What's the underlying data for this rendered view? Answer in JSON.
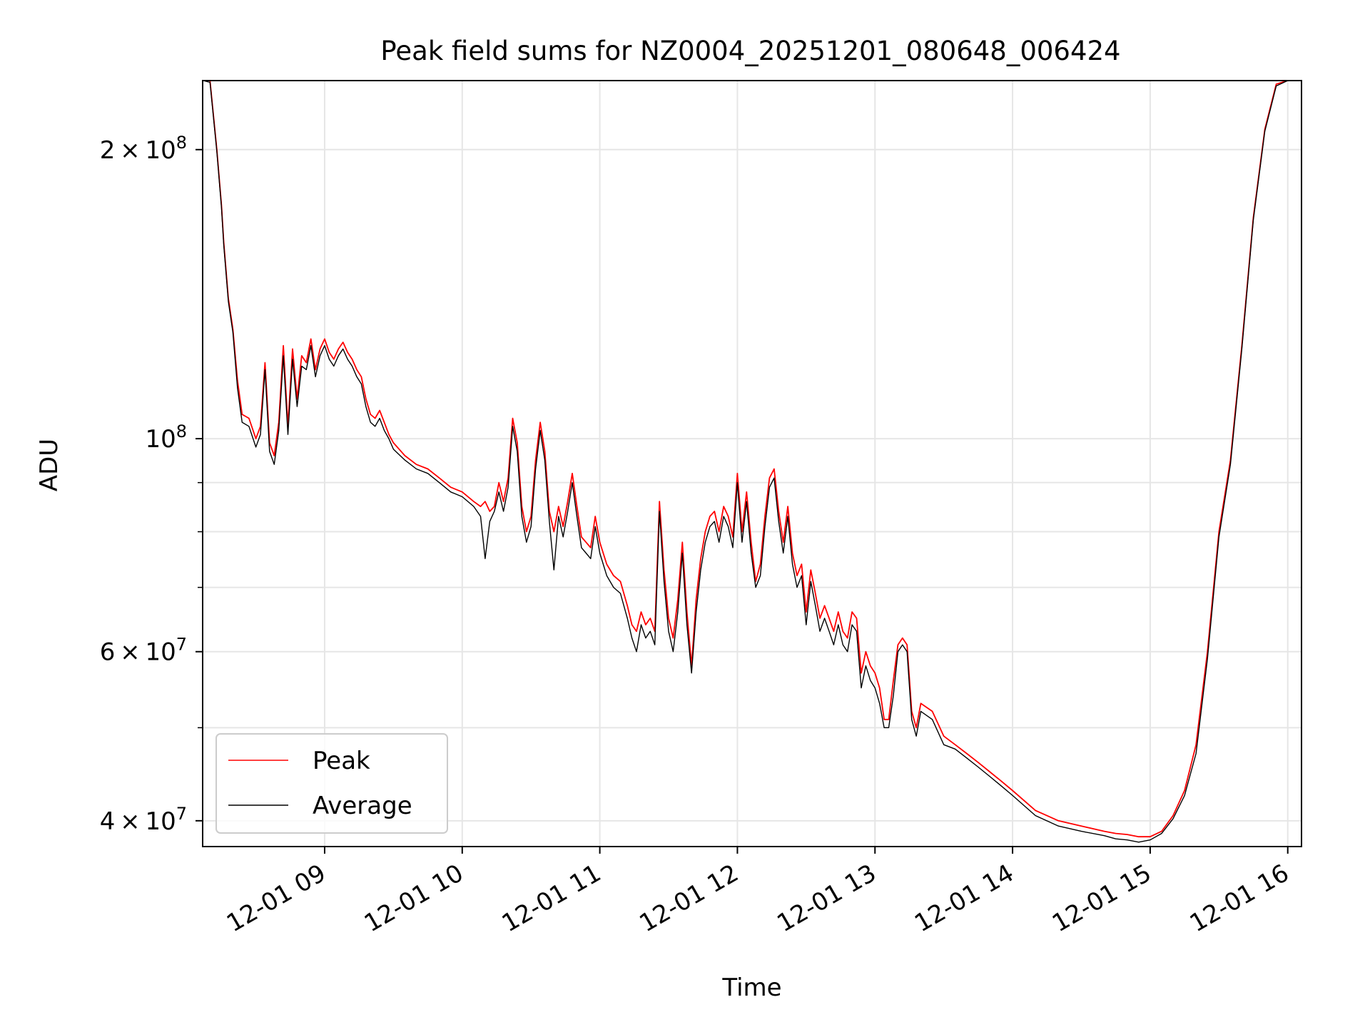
{
  "chart_data": {
    "type": "line",
    "title": "Peak field sums for NZ0004_20251201_080648_006424",
    "xlabel": "Time",
    "ylabel": "ADU",
    "x_unit": "time of day (2025-12-01)",
    "xlim": [
      "08:06:48",
      "16:06"
    ],
    "ylim": [
      37600000,
      236000000
    ],
    "yscale": "log",
    "grid": true,
    "legend_position": "lower-left",
    "x_ticks": [
      {
        "value": "09:00",
        "label": "12-01 09"
      },
      {
        "value": "10:00",
        "label": "12-01 10"
      },
      {
        "value": "11:00",
        "label": "12-01 11"
      },
      {
        "value": "12:00",
        "label": "12-01 12"
      },
      {
        "value": "13:00",
        "label": "12-01 13"
      },
      {
        "value": "14:00",
        "label": "12-01 14"
      },
      {
        "value": "15:00",
        "label": "12-01 15"
      },
      {
        "value": "16:00",
        "label": "12-01 16"
      }
    ],
    "y_ticks": [
      {
        "value": 200000000,
        "mantissa": "2",
        "exp": "8"
      },
      {
        "value": 100000000,
        "mantissa": "",
        "exp": "8"
      },
      {
        "value": 60000000,
        "mantissa": "6",
        "exp": "7"
      },
      {
        "value": 40000000,
        "mantissa": "4",
        "exp": "7"
      }
    ],
    "y_minor_gridlines": [
      50000000,
      70000000,
      80000000,
      90000000
    ],
    "series": [
      {
        "name": "Peak",
        "color": "#ff0000",
        "x": [
          "08:07",
          "08:10",
          "08:13",
          "08:15",
          "08:16",
          "08:18",
          "08:20",
          "08:22",
          "08:24",
          "08:27",
          "08:30",
          "08:32",
          "08:34",
          "08:36",
          "08:38",
          "08:40",
          "08:42",
          "08:44",
          "08:46",
          "08:48",
          "08:50",
          "08:52",
          "08:54",
          "08:56",
          "08:58",
          "09:00",
          "09:02",
          "09:04",
          "09:06",
          "09:08",
          "09:10",
          "09:12",
          "09:14",
          "09:16",
          "09:18",
          "09:20",
          "09:22",
          "09:24",
          "09:26",
          "09:28",
          "09:30",
          "09:35",
          "09:40",
          "09:45",
          "09:50",
          "09:55",
          "10:00",
          "10:05",
          "10:08",
          "10:10",
          "10:12",
          "10:14",
          "10:16",
          "10:18",
          "10:20",
          "10:22",
          "10:24",
          "10:26",
          "10:28",
          "10:30",
          "10:32",
          "10:34",
          "10:36",
          "10:38",
          "10:40",
          "10:42",
          "10:44",
          "10:46",
          "10:48",
          "10:50",
          "10:52",
          "10:54",
          "10:56",
          "10:58",
          "11:00",
          "11:03",
          "11:06",
          "11:09",
          "11:12",
          "11:14",
          "11:16",
          "11:18",
          "11:20",
          "11:22",
          "11:24",
          "11:26",
          "11:28",
          "11:30",
          "11:32",
          "11:34",
          "11:36",
          "11:38",
          "11:40",
          "11:42",
          "11:44",
          "11:46",
          "11:48",
          "11:50",
          "11:52",
          "11:54",
          "11:56",
          "11:58",
          "12:00",
          "12:02",
          "12:04",
          "12:06",
          "12:08",
          "12:10",
          "12:12",
          "12:14",
          "12:16",
          "12:18",
          "12:20",
          "12:22",
          "12:24",
          "12:26",
          "12:28",
          "12:30",
          "12:32",
          "12:34",
          "12:36",
          "12:38",
          "12:40",
          "12:42",
          "12:44",
          "12:46",
          "12:48",
          "12:50",
          "12:52",
          "12:54",
          "12:56",
          "12:58",
          "13:00",
          "13:02",
          "13:04",
          "13:06",
          "13:08",
          "13:10",
          "13:12",
          "13:14",
          "13:16",
          "13:18",
          "13:20",
          "13:25",
          "13:30",
          "13:35",
          "13:40",
          "13:45",
          "13:50",
          "13:55",
          "14:00",
          "14:10",
          "14:20",
          "14:30",
          "14:40",
          "14:45",
          "14:50",
          "14:55",
          "15:00",
          "15:05",
          "15:10",
          "15:15",
          "15:20",
          "15:25",
          "15:30",
          "15:35",
          "15:40",
          "15:45",
          "15:50",
          "15:55",
          "16:00",
          "16:06"
        ],
        "y": [
          236000000,
          236000000,
          200000000,
          175000000,
          160000000,
          140000000,
          130000000,
          115000000,
          106000000,
          105000000,
          100000000,
          103000000,
          120000000,
          99000000,
          96000000,
          104000000,
          125000000,
          103000000,
          124000000,
          110000000,
          122000000,
          120000000,
          127000000,
          118000000,
          124000000,
          127000000,
          123000000,
          121000000,
          124000000,
          126000000,
          123000000,
          121000000,
          118000000,
          116000000,
          110000000,
          106000000,
          105000000,
          107000000,
          104000000,
          101000000,
          99000000,
          96000000,
          94000000,
          93000000,
          91000000,
          89000000,
          88000000,
          86000000,
          85000000,
          86000000,
          84000000,
          85000000,
          90000000,
          86000000,
          91000000,
          105000000,
          99000000,
          85000000,
          80000000,
          83000000,
          95000000,
          104000000,
          97000000,
          84000000,
          80000000,
          85000000,
          81000000,
          86000000,
          92000000,
          85000000,
          79000000,
          78000000,
          77000000,
          83000000,
          78000000,
          74000000,
          72000000,
          71000000,
          67000000,
          64000000,
          63000000,
          66000000,
          64000000,
          65000000,
          63000000,
          86000000,
          73000000,
          65000000,
          62000000,
          68000000,
          78000000,
          66000000,
          58000000,
          68000000,
          75000000,
          80000000,
          83000000,
          84000000,
          80000000,
          85000000,
          83000000,
          79000000,
          92000000,
          80000000,
          88000000,
          78000000,
          71000000,
          74000000,
          83000000,
          91000000,
          93000000,
          84000000,
          78000000,
          85000000,
          76000000,
          72000000,
          74000000,
          66000000,
          73000000,
          69000000,
          65000000,
          67000000,
          65000000,
          63000000,
          66000000,
          63000000,
          62000000,
          66000000,
          65000000,
          57000000,
          60000000,
          58000000,
          57000000,
          55000000,
          51000000,
          51000000,
          56000000,
          61000000,
          62000000,
          61000000,
          52000000,
          50000000,
          53000000,
          52000000,
          49000000,
          48000000,
          47000000,
          46000000,
          45000000,
          44000000,
          43000000,
          41000000,
          40000000,
          39500000,
          39000000,
          38800000,
          38700000,
          38500000,
          38500000,
          39000000,
          40500000,
          43000000,
          48000000,
          60000000,
          80000000,
          95000000,
          125000000,
          170000000,
          210000000,
          234000000,
          236000000,
          236000000
        ]
      },
      {
        "name": "Average",
        "color": "#000000",
        "x": [
          "08:07",
          "08:10",
          "08:13",
          "08:15",
          "08:16",
          "08:18",
          "08:20",
          "08:22",
          "08:24",
          "08:27",
          "08:30",
          "08:32",
          "08:34",
          "08:36",
          "08:38",
          "08:40",
          "08:42",
          "08:44",
          "08:46",
          "08:48",
          "08:50",
          "08:52",
          "08:54",
          "08:56",
          "08:58",
          "09:00",
          "09:02",
          "09:04",
          "09:06",
          "09:08",
          "09:10",
          "09:12",
          "09:14",
          "09:16",
          "09:18",
          "09:20",
          "09:22",
          "09:24",
          "09:26",
          "09:28",
          "09:30",
          "09:35",
          "09:40",
          "09:45",
          "09:50",
          "09:55",
          "10:00",
          "10:05",
          "10:08",
          "10:10",
          "10:12",
          "10:14",
          "10:16",
          "10:18",
          "10:20",
          "10:22",
          "10:24",
          "10:26",
          "10:28",
          "10:30",
          "10:32",
          "10:34",
          "10:36",
          "10:38",
          "10:40",
          "10:42",
          "10:44",
          "10:46",
          "10:48",
          "10:50",
          "10:52",
          "10:54",
          "10:56",
          "10:58",
          "11:00",
          "11:03",
          "11:06",
          "11:09",
          "11:12",
          "11:14",
          "11:16",
          "11:18",
          "11:20",
          "11:22",
          "11:24",
          "11:26",
          "11:28",
          "11:30",
          "11:32",
          "11:34",
          "11:36",
          "11:38",
          "11:40",
          "11:42",
          "11:44",
          "11:46",
          "11:48",
          "11:50",
          "11:52",
          "11:54",
          "11:56",
          "11:58",
          "12:00",
          "12:02",
          "12:04",
          "12:06",
          "12:08",
          "12:10",
          "12:12",
          "12:14",
          "12:16",
          "12:18",
          "12:20",
          "12:22",
          "12:24",
          "12:26",
          "12:28",
          "12:30",
          "12:32",
          "12:34",
          "12:36",
          "12:38",
          "12:40",
          "12:42",
          "12:44",
          "12:46",
          "12:48",
          "12:50",
          "12:52",
          "12:54",
          "12:56",
          "12:58",
          "13:00",
          "13:02",
          "13:04",
          "13:06",
          "13:08",
          "13:10",
          "13:12",
          "13:14",
          "13:16",
          "13:18",
          "13:20",
          "13:25",
          "13:30",
          "13:35",
          "13:40",
          "13:45",
          "13:50",
          "13:55",
          "14:00",
          "14:10",
          "14:20",
          "14:30",
          "14:40",
          "14:45",
          "14:50",
          "14:55",
          "15:00",
          "15:05",
          "15:10",
          "15:15",
          "15:20",
          "15:25",
          "15:30",
          "15:35",
          "15:40",
          "15:45",
          "15:50",
          "15:55",
          "16:00",
          "16:06"
        ],
        "y": [
          236000000,
          235000000,
          199000000,
          174000000,
          159000000,
          139000000,
          129000000,
          113000000,
          104000000,
          103000000,
          98000000,
          101000000,
          118000000,
          97000000,
          94000000,
          102000000,
          122000000,
          101000000,
          121000000,
          108000000,
          119000000,
          118000000,
          125000000,
          116000000,
          122000000,
          125000000,
          121000000,
          119000000,
          122000000,
          124000000,
          121000000,
          119000000,
          116000000,
          114000000,
          108000000,
          104000000,
          103000000,
          105000000,
          102000000,
          100000000,
          97500000,
          95000000,
          93000000,
          92000000,
          90000000,
          88000000,
          87000000,
          85000000,
          83000000,
          75000000,
          82000000,
          84000000,
          88000000,
          84000000,
          89000000,
          103000000,
          97000000,
          83000000,
          78000000,
          81000000,
          93000000,
          102000000,
          95000000,
          82000000,
          73000000,
          83000000,
          79000000,
          84000000,
          90000000,
          83000000,
          77000000,
          76000000,
          75000000,
          81000000,
          76000000,
          72000000,
          70000000,
          69000000,
          65000000,
          62000000,
          60000000,
          64000000,
          62000000,
          63000000,
          61000000,
          84000000,
          71000000,
          63000000,
          60000000,
          66000000,
          76000000,
          64000000,
          57000000,
          66000000,
          73000000,
          78000000,
          81000000,
          82000000,
          78000000,
          83000000,
          81000000,
          77000000,
          90000000,
          78000000,
          86000000,
          76000000,
          70000000,
          72000000,
          81000000,
          89000000,
          91000000,
          82000000,
          76000000,
          83000000,
          74000000,
          70000000,
          72000000,
          64000000,
          71000000,
          67000000,
          63000000,
          65000000,
          63000000,
          61000000,
          64000000,
          61000000,
          60000000,
          64000000,
          63000000,
          55000000,
          58000000,
          56000000,
          55000000,
          53000000,
          50000000,
          50000000,
          54000000,
          60000000,
          61000000,
          60000000,
          51000000,
          49000000,
          52000000,
          51000000,
          48000000,
          47500000,
          46500000,
          45500000,
          44500000,
          43500000,
          42500000,
          40500000,
          39500000,
          39000000,
          38600000,
          38300000,
          38200000,
          38000000,
          38200000,
          38800000,
          40200000,
          42500000,
          47000000,
          59000000,
          79000000,
          94000000,
          124000000,
          169000000,
          209000000,
          233000000,
          236000000,
          236000000
        ]
      }
    ]
  }
}
